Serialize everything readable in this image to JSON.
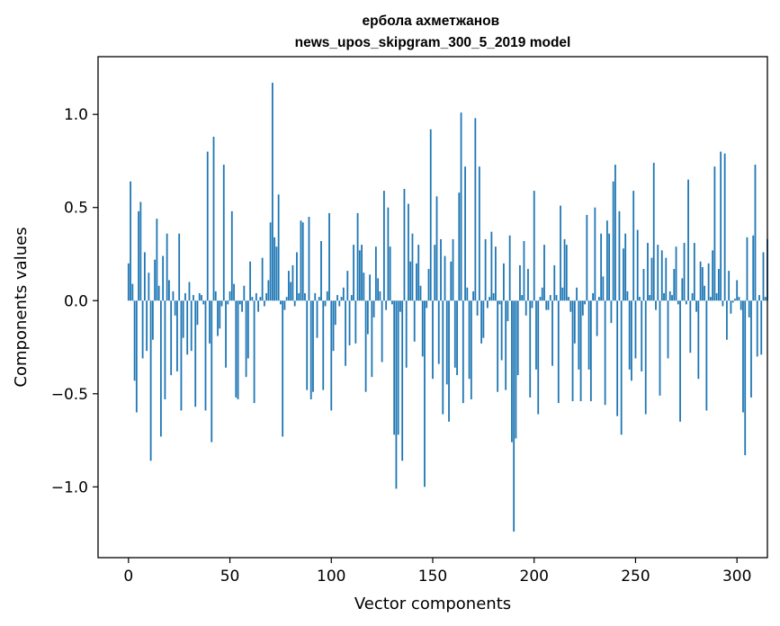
{
  "chart_data": {
    "type": "bar",
    "title": "ербола ахметжанов\nnews_upos_skipgram_300_5_2019 model",
    "title_lines": [
      "ербола ахметжанов",
      "news_upos_skipgram_300_5_2019 model"
    ],
    "xlabel": "Vector components",
    "ylabel": "Components values",
    "xlim": [
      -15,
      315
    ],
    "ylim": [
      -1.38,
      1.31
    ],
    "xticks": [
      0,
      50,
      100,
      150,
      200,
      250,
      300
    ],
    "xtick_labels": [
      "0",
      "50",
      "100",
      "150",
      "200",
      "250",
      "300"
    ],
    "yticks": [
      -1.0,
      -0.5,
      0.0,
      0.5,
      1.0
    ],
    "ytick_labels": [
      "−1.0",
      "−0.5",
      "0.0",
      "0.5",
      "1.0"
    ],
    "grid": false,
    "legend": "none",
    "bar_color": "#1f77b4",
    "series": [
      {
        "values": [
          0.2,
          0.64,
          0.09,
          -0.43,
          -0.6,
          0.48,
          0.53,
          -0.31,
          0.26,
          -0.27,
          0.15,
          -0.86,
          -0.21,
          0.22,
          0.44,
          0.08,
          -0.73,
          0.24,
          -0.53,
          0.36,
          0.11,
          -0.4,
          0.05,
          -0.08,
          -0.38,
          0.36,
          -0.59,
          -0.2,
          0.04,
          -0.29,
          0.1,
          -0.27,
          0.03,
          -0.57,
          -0.13,
          0.04,
          0.03,
          -0.02,
          -0.59,
          0.8,
          -0.23,
          -0.76,
          0.88,
          0.05,
          -0.19,
          -0.15,
          -0.03,
          0.73,
          -0.36,
          -0.02,
          0.05,
          0.48,
          0.09,
          -0.52,
          -0.53,
          -0.02,
          -0.06,
          0.08,
          -0.41,
          -0.31,
          0.21,
          0.02,
          -0.55,
          0.04,
          -0.06,
          0.02,
          0.23,
          -0.03,
          0.04,
          0.11,
          0.42,
          1.17,
          0.34,
          0.29,
          0.57,
          -0.02,
          -0.73,
          -0.05,
          0.02,
          0.16,
          0.1,
          0.19,
          -0.03,
          0.26,
          0.04,
          0.43,
          0.42,
          0.04,
          -0.48,
          0.45,
          -0.53,
          -0.49,
          0.04,
          -0.2,
          0.02,
          0.32,
          -0.48,
          -0.03,
          0.05,
          0.47,
          -0.59,
          -0.27,
          -0.13,
          0.03,
          -0.03,
          0.02,
          0.07,
          -0.35,
          0.16,
          -0.24,
          0.03,
          0.3,
          -0.23,
          0.47,
          0.27,
          0.3,
          0.15,
          -0.49,
          -0.18,
          0.14,
          -0.41,
          -0.09,
          0.29,
          0.12,
          0.05,
          -0.33,
          0.59,
          -0.05,
          0.5,
          0.29,
          -0.02,
          -0.72,
          -1.01,
          -0.72,
          -0.06,
          -0.86,
          0.6,
          -0.36,
          0.52,
          0.21,
          0.36,
          -0.22,
          0.2,
          0.3,
          0.08,
          -0.3,
          -1.0,
          -0.04,
          0.17,
          0.92,
          -0.42,
          0.3,
          0.56,
          -0.34,
          0.33,
          -0.61,
          0.24,
          -0.45,
          -0.65,
          0.21,
          0.33,
          -0.36,
          -0.4,
          0.58,
          1.01,
          -0.55,
          0.72,
          0.07,
          -0.42,
          -0.53,
          0.05,
          0.98,
          -0.08,
          0.72,
          -0.23,
          -0.2,
          0.33,
          -0.04,
          0.02,
          0.37,
          0.04,
          0.29,
          -0.49,
          -0.02,
          -0.32,
          0.2,
          -0.48,
          -0.11,
          0.35,
          -0.76,
          -1.24,
          -0.74,
          -0.4,
          0.19,
          0.03,
          0.32,
          -0.08,
          0.17,
          -0.52,
          -0.04,
          0.59,
          -0.37,
          -0.61,
          0.02,
          0.07,
          0.3,
          -0.05,
          -0.05,
          0.03,
          -0.35,
          0.19,
          0.03,
          -0.55,
          0.51,
          0.07,
          0.33,
          0.3,
          0.02,
          -0.06,
          -0.54,
          -0.23,
          0.07,
          -0.37,
          -0.54,
          -0.08,
          -0.02,
          0.46,
          -0.37,
          -0.54,
          0.04,
          0.5,
          -0.19,
          0.02,
          0.36,
          0.13,
          -0.56,
          0.43,
          0.36,
          -0.12,
          0.64,
          0.73,
          -0.62,
          0.48,
          -0.72,
          0.28,
          0.36,
          0.05,
          -0.37,
          -0.43,
          0.59,
          -0.31,
          0.38,
          0.02,
          -0.38,
          0.17,
          -0.61,
          0.31,
          0.03,
          0.23,
          0.74,
          -0.05,
          0.3,
          -0.51,
          0.27,
          0.04,
          0.23,
          -0.31,
          0.05,
          0.03,
          0.17,
          0.29,
          -0.02,
          -0.65,
          0.12,
          0.31,
          -0.02,
          0.65,
          -0.28,
          0.04,
          0.31,
          -0.06,
          -0.42,
          0.21,
          0.18,
          0.08,
          -0.59,
          0.2,
          0.02,
          0.27,
          0.72,
          0.04,
          0.17,
          0.8,
          -0.03,
          0.79,
          -0.21,
          0.16,
          -0.07,
          -0.01,
          0.01,
          0.11,
          0.02,
          -0.05,
          -0.6,
          -0.83,
          0.34,
          -0.09,
          -0.52,
          0.35,
          0.73,
          -0.3,
          0.03,
          -0.29,
          0.26,
          0.02,
          0.33
        ]
      }
    ]
  }
}
